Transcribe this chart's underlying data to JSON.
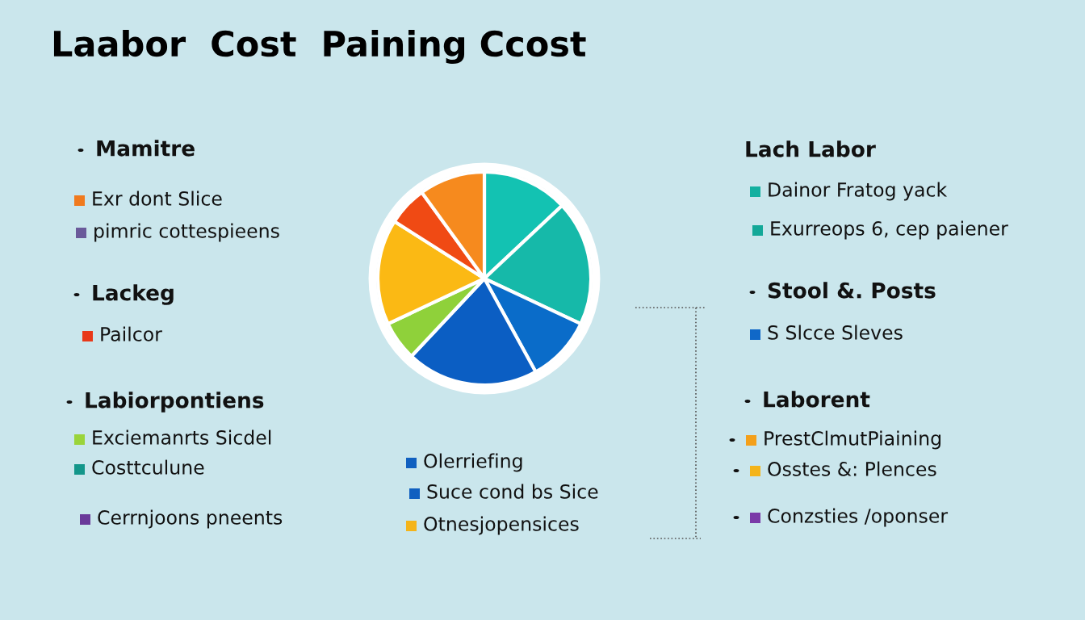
{
  "chart_data": {
    "type": "pie",
    "title": "Laabor  Cost  Paining Ccost",
    "categories": [
      null,
      null,
      null,
      null,
      null,
      null,
      null,
      null
    ],
    "values": [
      13,
      19,
      10,
      20,
      6,
      16,
      6,
      10
    ],
    "colors": [
      "#13c2b2",
      "#16b9a9",
      "#0a6cc9",
      "#0b5ec3",
      "#8fd13a",
      "#fbb914",
      "#f04a14",
      "#f68a1e"
    ],
    "annotations": [
      "Mamitre",
      "Exr dont Slice",
      "pimric cottespieens",
      "Lackeg",
      "Pailcor",
      "Labiorpontiens",
      "Exciemanrts Sicdel",
      "Costtculune",
      "Cerrnjoons pneents",
      "Olerriefing",
      "Suce cond bs Sice",
      "Otnesjopensices",
      "Lach Labor",
      "Dainor Fratog yack",
      "Exurreops 6, cep paiener",
      "Stool &. Posts",
      "S Slcce Sleves",
      "Laborent",
      "PrestClmutPiaining",
      "Osstes &: Plences",
      "Conzsties /oponser"
    ],
    "legend": false
  }
}
